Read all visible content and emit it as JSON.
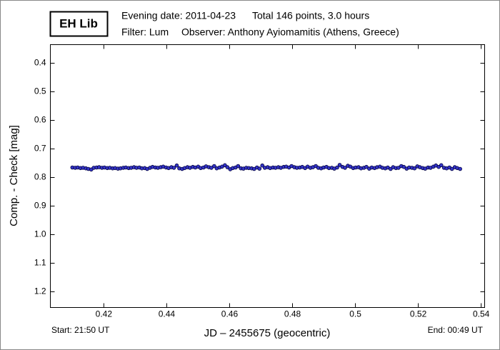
{
  "chart_data": {
    "type": "scatter",
    "badge": "EH Lib",
    "evening_date": "Evening date: 2011-04-23",
    "total": "Total 146 points, 3.0 hours",
    "filter": "Filter: Lum",
    "observer": "Observer: Anthony Ayiomamitis (Athens, Greece)",
    "y_label": "Comp. - Check [mag]",
    "x_label": "JD – 2455675  (geocentric)",
    "start": "Start: 21:50 UT",
    "end": "End: 00:49 UT",
    "xlim": [
      0.403,
      0.5411
    ],
    "ylim": [
      0.335,
      1.255
    ],
    "y_inverted": true,
    "xticks": [
      0.42,
      0.44,
      0.46,
      0.48,
      0.5,
      0.52,
      0.54
    ],
    "yticks": [
      0.4,
      0.5,
      0.6,
      0.7,
      0.8,
      0.9,
      {
        "value": 1,
        "label": "1.0"
      },
      1.1,
      1.2
    ],
    "series": [
      {
        "color": "#3434c8",
        "x": [
          0.41,
          0.4109,
          0.4117,
          0.4126,
          0.4134,
          0.4143,
          0.4151,
          0.416,
          0.4168,
          0.4177,
          0.4185,
          0.4194,
          0.4202,
          0.4211,
          0.4219,
          0.4228,
          0.4236,
          0.4245,
          0.4253,
          0.4262,
          0.427,
          0.4279,
          0.4287,
          0.4296,
          0.4304,
          0.4313,
          0.4321,
          0.433,
          0.4338,
          0.4347,
          0.4355,
          0.4364,
          0.4372,
          0.4381,
          0.4389,
          0.4398,
          0.4406,
          0.4415,
          0.4423,
          0.4432,
          0.444,
          0.4449,
          0.4457,
          0.4466,
          0.4474,
          0.4483,
          0.4491,
          0.45,
          0.4508,
          0.4517,
          0.4525,
          0.4534,
          0.4542,
          0.4551,
          0.4559,
          0.4568,
          0.4576,
          0.4585,
          0.4593,
          0.4602,
          0.461,
          0.4619,
          0.4627,
          0.4636,
          0.4644,
          0.4653,
          0.4661,
          0.467,
          0.4678,
          0.4687,
          0.4695,
          0.4704,
          0.4712,
          0.4721,
          0.4729,
          0.4738,
          0.4746,
          0.4755,
          0.4763,
          0.4772,
          0.478,
          0.4789,
          0.4797,
          0.4806,
          0.4814,
          0.4823,
          0.4831,
          0.484,
          0.4848,
          0.4857,
          0.4865,
          0.4874,
          0.4882,
          0.4891,
          0.4899,
          0.4908,
          0.4916,
          0.4925,
          0.4933,
          0.4942,
          0.495,
          0.4959,
          0.4967,
          0.4976,
          0.4984,
          0.4993,
          0.5001,
          0.501,
          0.5018,
          0.5027,
          0.5035,
          0.5044,
          0.5052,
          0.5061,
          0.5069,
          0.5078,
          0.5086,
          0.5095,
          0.5103,
          0.5112,
          0.512,
          0.5129,
          0.5137,
          0.5146,
          0.5154,
          0.5163,
          0.5171,
          0.518,
          0.5188,
          0.5197,
          0.5205,
          0.5214,
          0.5222,
          0.5231,
          0.5239,
          0.5248,
          0.5256,
          0.5265,
          0.5273,
          0.5282,
          0.529,
          0.5299,
          0.5307,
          0.5316,
          0.5324,
          0.5333
        ],
        "values": [
          0.765,
          0.766,
          0.765,
          0.767,
          0.766,
          0.768,
          0.77,
          0.772,
          0.766,
          0.765,
          0.764,
          0.766,
          0.765,
          0.767,
          0.766,
          0.768,
          0.767,
          0.769,
          0.768,
          0.766,
          0.765,
          0.767,
          0.766,
          0.764,
          0.766,
          0.765,
          0.768,
          0.767,
          0.77,
          0.766,
          0.763,
          0.765,
          0.766,
          0.764,
          0.762,
          0.765,
          0.767,
          0.764,
          0.766,
          0.758,
          0.768,
          0.77,
          0.767,
          0.764,
          0.766,
          0.763,
          0.765,
          0.762,
          0.767,
          0.765,
          0.761,
          0.764,
          0.766,
          0.76,
          0.768,
          0.765,
          0.762,
          0.757,
          0.764,
          0.771,
          0.767,
          0.765,
          0.76,
          0.768,
          0.769,
          0.766,
          0.767,
          0.768,
          0.77,
          0.765,
          0.769,
          0.758,
          0.766,
          0.764,
          0.767,
          0.765,
          0.766,
          0.764,
          0.766,
          0.763,
          0.762,
          0.765,
          0.76,
          0.764,
          0.766,
          0.765,
          0.763,
          0.767,
          0.762,
          0.766,
          0.764,
          0.76,
          0.766,
          0.768,
          0.765,
          0.763,
          0.767,
          0.766,
          0.769,
          0.765,
          0.756,
          0.763,
          0.766,
          0.759,
          0.762,
          0.767,
          0.765,
          0.764,
          0.768,
          0.766,
          0.763,
          0.769,
          0.765,
          0.767,
          0.764,
          0.762,
          0.766,
          0.768,
          0.765,
          0.77,
          0.764,
          0.767,
          0.766,
          0.76,
          0.763,
          0.769,
          0.765,
          0.766,
          0.768,
          0.761,
          0.764,
          0.767,
          0.769,
          0.765,
          0.766,
          0.762,
          0.758,
          0.763,
          0.757,
          0.766,
          0.768,
          0.765,
          0.77,
          0.764,
          0.767,
          0.77
        ]
      }
    ]
  }
}
